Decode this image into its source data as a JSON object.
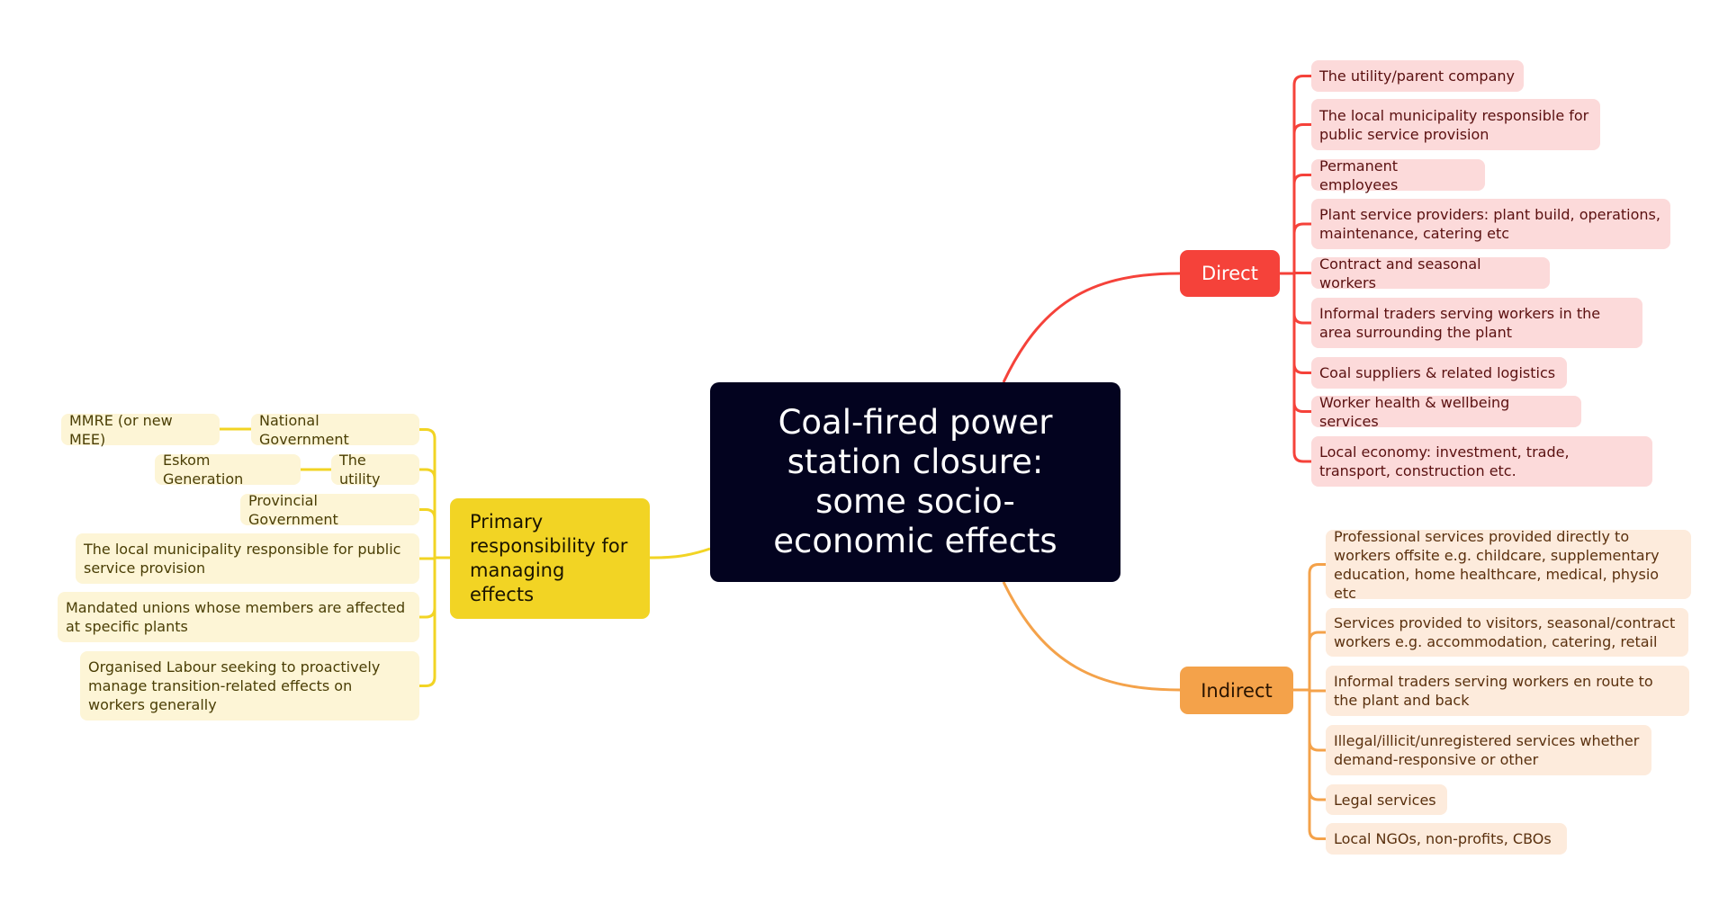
{
  "central": {
    "title": "Coal-fired power station closure: some socio-economic effects"
  },
  "colors": {
    "central": "#03031f",
    "direct": "#f5423a",
    "indirect": "#f4a24a",
    "primary": "#f2d424"
  },
  "direct": {
    "label": "Direct",
    "items": [
      "The utility/parent company",
      "The local municipality responsible for public service provision",
      "Permanent employees",
      "Plant service providers: plant build, operations, maintenance, catering etc",
      "Contract and seasonal workers",
      "Informal traders serving workers in the area surrounding the plant",
      "Coal suppliers & related logistics",
      "Worker health & wellbeing services",
      "Local economy: investment, trade, transport, construction etc."
    ]
  },
  "indirect": {
    "label": "Indirect",
    "items": [
      "Professional services provided directly to workers offsite e.g. childcare, supplementary education, home healthcare, medical, physio etc",
      "Services provided to visitors, seasonal/contract workers e.g. accommodation, catering, retail",
      "Informal traders serving workers en route to the plant and back",
      "Illegal/illicit/unregistered services whether demand-responsive or other",
      "Legal services",
      "Local NGOs, non-profits, CBOs"
    ]
  },
  "primary": {
    "label": "Primary responsibility for managing effects",
    "items": [
      {
        "label": "National Government",
        "child": "MMRE (or new MEE)"
      },
      {
        "label": "The utility",
        "child": "Eskom Generation"
      },
      {
        "label": "Provincial Government"
      },
      {
        "label": "The local municipality responsible for public service provision"
      },
      {
        "label": "Mandated unions whose members are affected at specific plants"
      },
      {
        "label": "Organised Labour seeking to proactively manage transition-related effects on workers generally"
      }
    ]
  }
}
